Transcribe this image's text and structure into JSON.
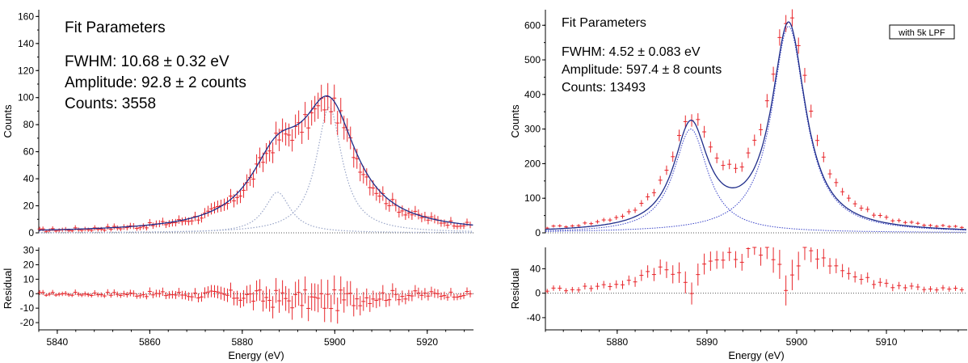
{
  "chart_data": [
    {
      "type": "scatter",
      "panel": "left",
      "xlabel": "Energy (eV)",
      "ylabel_top": "Counts",
      "ylabel_bottom": "Residual",
      "xlim": [
        5836,
        5930
      ],
      "ylim_top": [
        0,
        165
      ],
      "ylim_bottom": [
        -25,
        32
      ],
      "x_ticks": [
        5840,
        5860,
        5880,
        5900,
        5920
      ],
      "y_ticks_top": [
        0,
        20,
        40,
        60,
        80,
        100,
        120,
        140,
        160
      ],
      "y_ticks_bottom": [
        -20,
        -10,
        0,
        10,
        20,
        30
      ],
      "fit_title": "Fit Parameters",
      "fit_lines": [
        "FWHM: 10.68 ± 0.32 eV",
        "Amplitude: 92.8 ± 2 counts",
        "Counts: 3558"
      ],
      "annotation": "",
      "model": {
        "peaks": [
          {
            "center": 5887.6,
            "width": 3.4,
            "amplitude": 30,
            "fit_amplitude": 47
          },
          {
            "center": 5898.8,
            "width": 3.4,
            "amplitude": 92.8,
            "fit_amplitude": 87
          }
        ],
        "fit_width": 7.2
      },
      "colors": {
        "data": "#e8262b",
        "fit": "#1f2d8a",
        "components": "#9aa6c8",
        "zero_line": "#555555"
      }
    },
    {
      "type": "scatter",
      "panel": "right",
      "xlabel": "Energy (eV)",
      "ylabel_top": "Counts",
      "ylabel_bottom": "Residual",
      "xlim": [
        5872,
        5919
      ],
      "ylim_top": [
        0,
        645
      ],
      "ylim_bottom": [
        -60,
        75
      ],
      "x_ticks": [
        5880,
        5890,
        5900,
        5910
      ],
      "y_ticks_top": [
        0,
        100,
        200,
        300,
        400,
        500,
        600
      ],
      "y_ticks_bottom": [
        -40,
        0,
        40
      ],
      "fit_title": "Fit Parameters",
      "fit_lines": [
        "FWHM: 4.52 ± 0.083 eV",
        "Amplitude: 597.4 ± 8 counts",
        "Counts: 13493"
      ],
      "annotation": "with 5k LPF",
      "model": {
        "peaks": [
          {
            "center": 5888.2,
            "width": 2.3,
            "amplitude": 300,
            "fit_amplitude": 300
          },
          {
            "center": 5899.1,
            "width": 2.3,
            "amplitude": 597.4,
            "fit_amplitude": 597
          }
        ],
        "fit_width": 2.3
      },
      "colors": {
        "data": "#e8262b",
        "fit": "#1f2d8a",
        "components": "#3a44c8",
        "zero_line": "#555555"
      }
    }
  ]
}
